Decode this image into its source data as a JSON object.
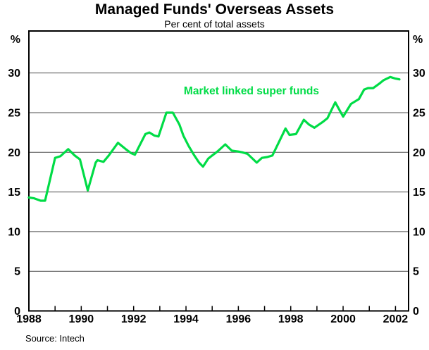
{
  "chart_data": {
    "type": "line",
    "title": "Managed Funds' Overseas Assets",
    "subtitle": "Per cent of total assets",
    "unit_label": "%",
    "source": "Source: Intech",
    "x_range": [
      1988,
      2002.5
    ],
    "y_range": [
      0,
      35.3
    ],
    "y_ticks": [
      0,
      5,
      10,
      15,
      20,
      25,
      30
    ],
    "x_minor_ticks": [
      1988,
      1989,
      1990,
      1991,
      1992,
      1993,
      1994,
      1995,
      1996,
      1997,
      1998,
      1999,
      2000,
      2001,
      2002
    ],
    "x_labels": [
      1988,
      1990,
      1992,
      1994,
      1996,
      1998,
      2000,
      2002
    ],
    "grid": "horizontal-gridlines",
    "legend_position": "inline-annotation",
    "colors": {
      "line": "#00DC46",
      "grid": "#4d4d4d",
      "axis": "#000000",
      "background": "#ffffff",
      "text": "#000000"
    },
    "annotation": {
      "text": "Market linked super funds",
      "anchor_year": 1996.5,
      "anchor_value": 27.7
    },
    "series": [
      {
        "name": "Market linked super funds",
        "color": "#00DC46",
        "points": [
          [
            1988.0,
            14.3
          ],
          [
            1988.2,
            14.2
          ],
          [
            1988.45,
            13.9
          ],
          [
            1988.62,
            13.9
          ],
          [
            1989.0,
            19.3
          ],
          [
            1989.2,
            19.5
          ],
          [
            1989.5,
            20.4
          ],
          [
            1989.75,
            19.6
          ],
          [
            1989.95,
            19.1
          ],
          [
            1990.25,
            15.2
          ],
          [
            1990.55,
            18.7
          ],
          [
            1990.62,
            19.0
          ],
          [
            1990.85,
            18.8
          ],
          [
            1991.05,
            19.6
          ],
          [
            1991.4,
            21.2
          ],
          [
            1991.7,
            20.4
          ],
          [
            1991.9,
            19.9
          ],
          [
            1992.05,
            19.7
          ],
          [
            1992.45,
            22.3
          ],
          [
            1992.6,
            22.5
          ],
          [
            1992.8,
            22.1
          ],
          [
            1992.95,
            22.0
          ],
          [
            1993.25,
            25.0
          ],
          [
            1993.5,
            25.0
          ],
          [
            1993.75,
            23.5
          ],
          [
            1993.9,
            22.1
          ],
          [
            1994.1,
            20.8
          ],
          [
            1994.3,
            19.7
          ],
          [
            1994.5,
            18.7
          ],
          [
            1994.65,
            18.2
          ],
          [
            1994.85,
            19.2
          ],
          [
            1995.0,
            19.6
          ],
          [
            1995.2,
            20.1
          ],
          [
            1995.5,
            21.0
          ],
          [
            1995.75,
            20.2
          ],
          [
            1996.0,
            20.1
          ],
          [
            1996.15,
            20.0
          ],
          [
            1996.35,
            19.8
          ],
          [
            1996.7,
            18.7
          ],
          [
            1996.9,
            19.3
          ],
          [
            1997.1,
            19.4
          ],
          [
            1997.3,
            19.6
          ],
          [
            1997.8,
            23.0
          ],
          [
            1997.95,
            22.2
          ],
          [
            1998.2,
            22.3
          ],
          [
            1998.5,
            24.1
          ],
          [
            1998.7,
            23.5
          ],
          [
            1998.9,
            23.1
          ],
          [
            1999.25,
            23.9
          ],
          [
            1999.4,
            24.3
          ],
          [
            1999.7,
            26.3
          ],
          [
            2000.0,
            24.5
          ],
          [
            2000.3,
            26.1
          ],
          [
            2000.4,
            26.3
          ],
          [
            2000.6,
            26.7
          ],
          [
            2000.8,
            27.9
          ],
          [
            2000.95,
            28.1
          ],
          [
            2001.15,
            28.1
          ],
          [
            2001.4,
            28.7
          ],
          [
            2001.55,
            29.1
          ],
          [
            2001.8,
            29.5
          ],
          [
            2002.0,
            29.3
          ],
          [
            2002.15,
            29.2
          ]
        ]
      }
    ]
  }
}
